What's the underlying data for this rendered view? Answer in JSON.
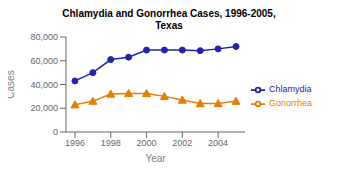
{
  "chart_data": {
    "type": "line",
    "title": "Chlamydia and Gonorrhea Cases, 1996-2005,\nTexas",
    "xlabel": "Year",
    "ylabel": "Cases",
    "x": [
      1996,
      1997,
      1998,
      1999,
      2000,
      2001,
      2002,
      2003,
      2004,
      2005
    ],
    "series": [
      {
        "name": "Chlamydia",
        "color": "#2222aa",
        "marker": "circle",
        "values": [
          43000,
          50000,
          61000,
          63000,
          69000,
          69000,
          69000,
          68500,
          70000,
          72000
        ]
      },
      {
        "name": "Gonorrhea",
        "color": "#e87d00",
        "marker": "triangle",
        "values": [
          23000,
          26000,
          32000,
          32500,
          32500,
          30000,
          27000,
          24000,
          24000,
          26000
        ]
      }
    ],
    "xlim": [
      1995.5,
      2005.5
    ],
    "xticks": [
      1996,
      1998,
      2000,
      2002,
      2004
    ],
    "ylim": [
      0,
      80000
    ],
    "yticks": [
      0,
      {
        "value": 20000,
        "label": "20,000"
      },
      {
        "value": 40000,
        "label": "40,000"
      },
      {
        "value": 60000,
        "label": "60,000"
      },
      {
        "value": 80000,
        "label": "80,000"
      }
    ],
    "grid": false,
    "legend": "right"
  }
}
